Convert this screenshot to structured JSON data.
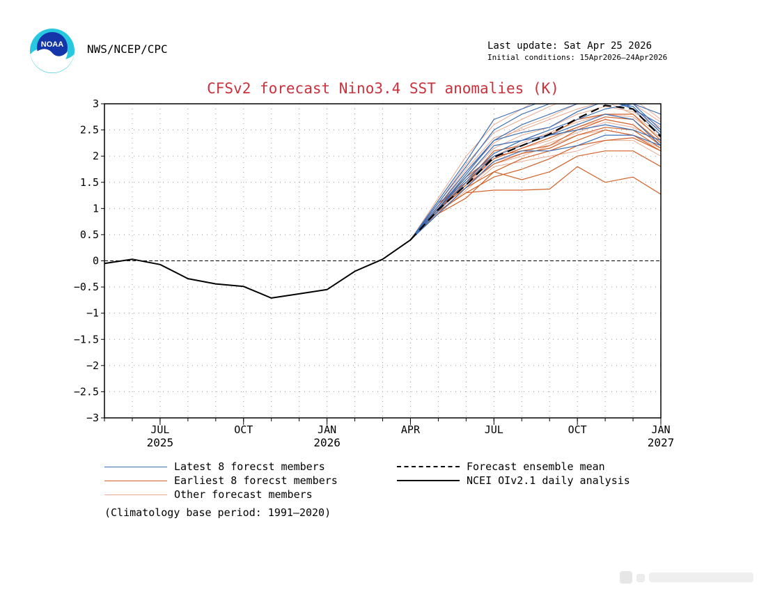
{
  "header": {
    "agency": "NWS/NCEP/CPC",
    "last_update": "Last update: Sat Apr 25 2026",
    "initial_conditions": "Initial conditions: 15Apr2026—24Apr2026"
  },
  "logo": {
    "text": "NOAA",
    "icon": "noaa-logo-icon"
  },
  "legend": {
    "latest": "Latest 8 forecst members",
    "earliest": "Earliest 8 forecst members",
    "other": "Other forecast members",
    "mean": "Forecast ensemble mean",
    "analysis": "NCEI OIv2.1 daily analysis",
    "climatology": "(Climatology base period: 1991—2020)"
  },
  "colors": {
    "title": "#c8323c",
    "latest": "#3a6db5",
    "earliest": "#d2622a",
    "other": "#e8a890",
    "observed": "#000000"
  },
  "chart_data": {
    "type": "line",
    "title": "CFSv2 forecast Nino3.4 SST anomalies (K)",
    "ylim": [
      -3,
      3
    ],
    "y_ticks": [
      3,
      2.5,
      2,
      1.5,
      1,
      0.5,
      0,
      -0.5,
      -1,
      -1.5,
      -2,
      -2.5,
      -3
    ],
    "y_tick_labels": [
      "3",
      "2.5",
      "2",
      "1.5",
      "1",
      "0.5",
      "0",
      "−0.5",
      "−1",
      "−1.5",
      "−2",
      "−2.5",
      "−3"
    ],
    "x_range_months": [
      "2025-05",
      "2027-01"
    ],
    "x_ticks": [
      {
        "month": "2025-07",
        "label": "JUL",
        "year": "2025"
      },
      {
        "month": "2025-10",
        "label": "OCT",
        "year": ""
      },
      {
        "month": "2026-01",
        "label": "JAN",
        "year": "2026"
      },
      {
        "month": "2026-04",
        "label": "APR",
        "year": ""
      },
      {
        "month": "2026-07",
        "label": "JUL",
        "year": ""
      },
      {
        "month": "2026-10",
        "label": "OCT",
        "year": ""
      },
      {
        "month": "2027-01",
        "label": "JAN",
        "year": "2027"
      }
    ],
    "grid": true,
    "observed": {
      "name": "NCEI OIv2.1 daily analysis",
      "x": [
        "2025-05-01",
        "2025-06-01",
        "2025-07-01",
        "2025-08-01",
        "2025-09-01",
        "2025-10-01",
        "2025-11-01",
        "2025-12-01",
        "2026-01-01",
        "2026-02-01",
        "2026-03-01",
        "2026-04-01"
      ],
      "y": [
        -0.05,
        0.03,
        -0.07,
        -0.34,
        -0.44,
        -0.49,
        -0.71,
        -0.63,
        -0.55,
        -0.2,
        0.03,
        0.4
      ]
    },
    "forecast_x": [
      "2026-04-01",
      "2026-05-01",
      "2026-06-01",
      "2026-07-01",
      "2026-08-01",
      "2026-09-01",
      "2026-10-01",
      "2026-11-01",
      "2026-12-01",
      "2027-01-01"
    ],
    "ensemble_mean": {
      "name": "Forecast ensemble mean",
      "y": [
        0.4,
        0.98,
        1.45,
        1.98,
        2.2,
        2.42,
        2.72,
        2.97,
        2.9,
        2.37
      ]
    },
    "latest_members": [
      [
        0.4,
        1.15,
        1.9,
        2.7,
        2.9,
        3.1,
        3.3,
        3.3,
        3.0,
        2.5
      ],
      [
        0.4,
        1.05,
        1.7,
        2.3,
        2.6,
        2.8,
        3.0,
        3.1,
        2.9,
        2.4
      ],
      [
        0.4,
        1.0,
        1.6,
        2.2,
        2.3,
        2.4,
        2.5,
        2.6,
        2.5,
        2.3
      ],
      [
        0.4,
        0.95,
        1.5,
        2.0,
        2.2,
        2.4,
        2.6,
        2.8,
        2.7,
        2.2
      ],
      [
        0.4,
        1.1,
        1.8,
        2.5,
        2.8,
        3.0,
        3.2,
        3.2,
        2.9,
        2.6
      ],
      [
        0.4,
        0.9,
        1.4,
        1.9,
        2.1,
        2.1,
        2.2,
        2.4,
        2.4,
        2.2
      ],
      [
        0.4,
        1.0,
        1.55,
        2.05,
        2.3,
        2.5,
        2.7,
        2.9,
        3.0,
        2.8
      ],
      [
        0.4,
        1.0,
        1.65,
        2.3,
        2.45,
        2.55,
        2.85,
        3.05,
        2.95,
        2.45
      ]
    ],
    "earliest_members": [
      [
        0.4,
        0.95,
        1.3,
        1.35,
        1.35,
        1.37,
        1.8,
        1.5,
        1.6,
        1.27
      ],
      [
        0.4,
        0.9,
        1.2,
        1.7,
        1.55,
        1.7,
        2.0,
        2.1,
        2.1,
        1.8
      ],
      [
        0.4,
        0.95,
        1.3,
        1.6,
        1.75,
        1.95,
        2.2,
        2.3,
        2.35,
        2.1
      ],
      [
        0.4,
        1.05,
        1.6,
        2.0,
        2.1,
        2.2,
        2.5,
        2.7,
        2.6,
        2.2
      ],
      [
        0.4,
        1.0,
        1.45,
        1.85,
        2.05,
        2.15,
        2.4,
        2.55,
        2.5,
        2.15
      ],
      [
        0.4,
        1.1,
        1.5,
        2.1,
        2.2,
        2.4,
        2.7,
        2.8,
        2.8,
        2.3
      ],
      [
        0.4,
        1.0,
        1.5,
        1.95,
        2.15,
        2.35,
        2.55,
        2.75,
        2.7,
        2.25
      ],
      [
        0.4,
        1.0,
        1.4,
        1.7,
        1.95,
        2.1,
        2.3,
        2.5,
        2.4,
        2.1
      ]
    ],
    "other_members": [
      [
        0.4,
        1.2,
        2.0,
        2.6,
        2.9,
        3.2,
        3.3,
        3.3,
        3.1,
        2.7
      ],
      [
        0.4,
        0.9,
        1.35,
        1.8,
        1.9,
        2.0,
        2.1,
        2.3,
        2.3,
        2.0
      ],
      [
        0.4,
        1.05,
        1.75,
        2.35,
        2.5,
        2.7,
        2.9,
        3.05,
        2.8,
        2.4
      ],
      [
        0.4,
        0.95,
        1.45,
        1.95,
        2.15,
        2.3,
        2.55,
        2.7,
        2.6,
        2.2
      ],
      [
        0.4,
        1.0,
        1.6,
        2.15,
        2.4,
        2.55,
        2.8,
        2.95,
        2.85,
        2.5
      ],
      [
        0.4,
        0.92,
        1.4,
        1.85,
        2.0,
        2.2,
        2.4,
        2.5,
        2.4,
        2.15
      ],
      [
        0.4,
        1.1,
        1.85,
        2.45,
        2.7,
        2.95,
        3.15,
        3.2,
        3.0,
        2.65
      ],
      [
        0.4,
        1.0,
        1.55,
        2.0,
        2.25,
        2.45,
        2.65,
        2.8,
        2.75,
        2.35
      ],
      [
        0.4,
        0.97,
        1.5,
        1.9,
        2.05,
        2.25,
        2.45,
        2.65,
        2.55,
        2.3
      ],
      [
        0.4,
        1.03,
        1.7,
        2.25,
        2.55,
        2.75,
        3.0,
        3.1,
        2.9,
        2.55
      ]
    ]
  }
}
